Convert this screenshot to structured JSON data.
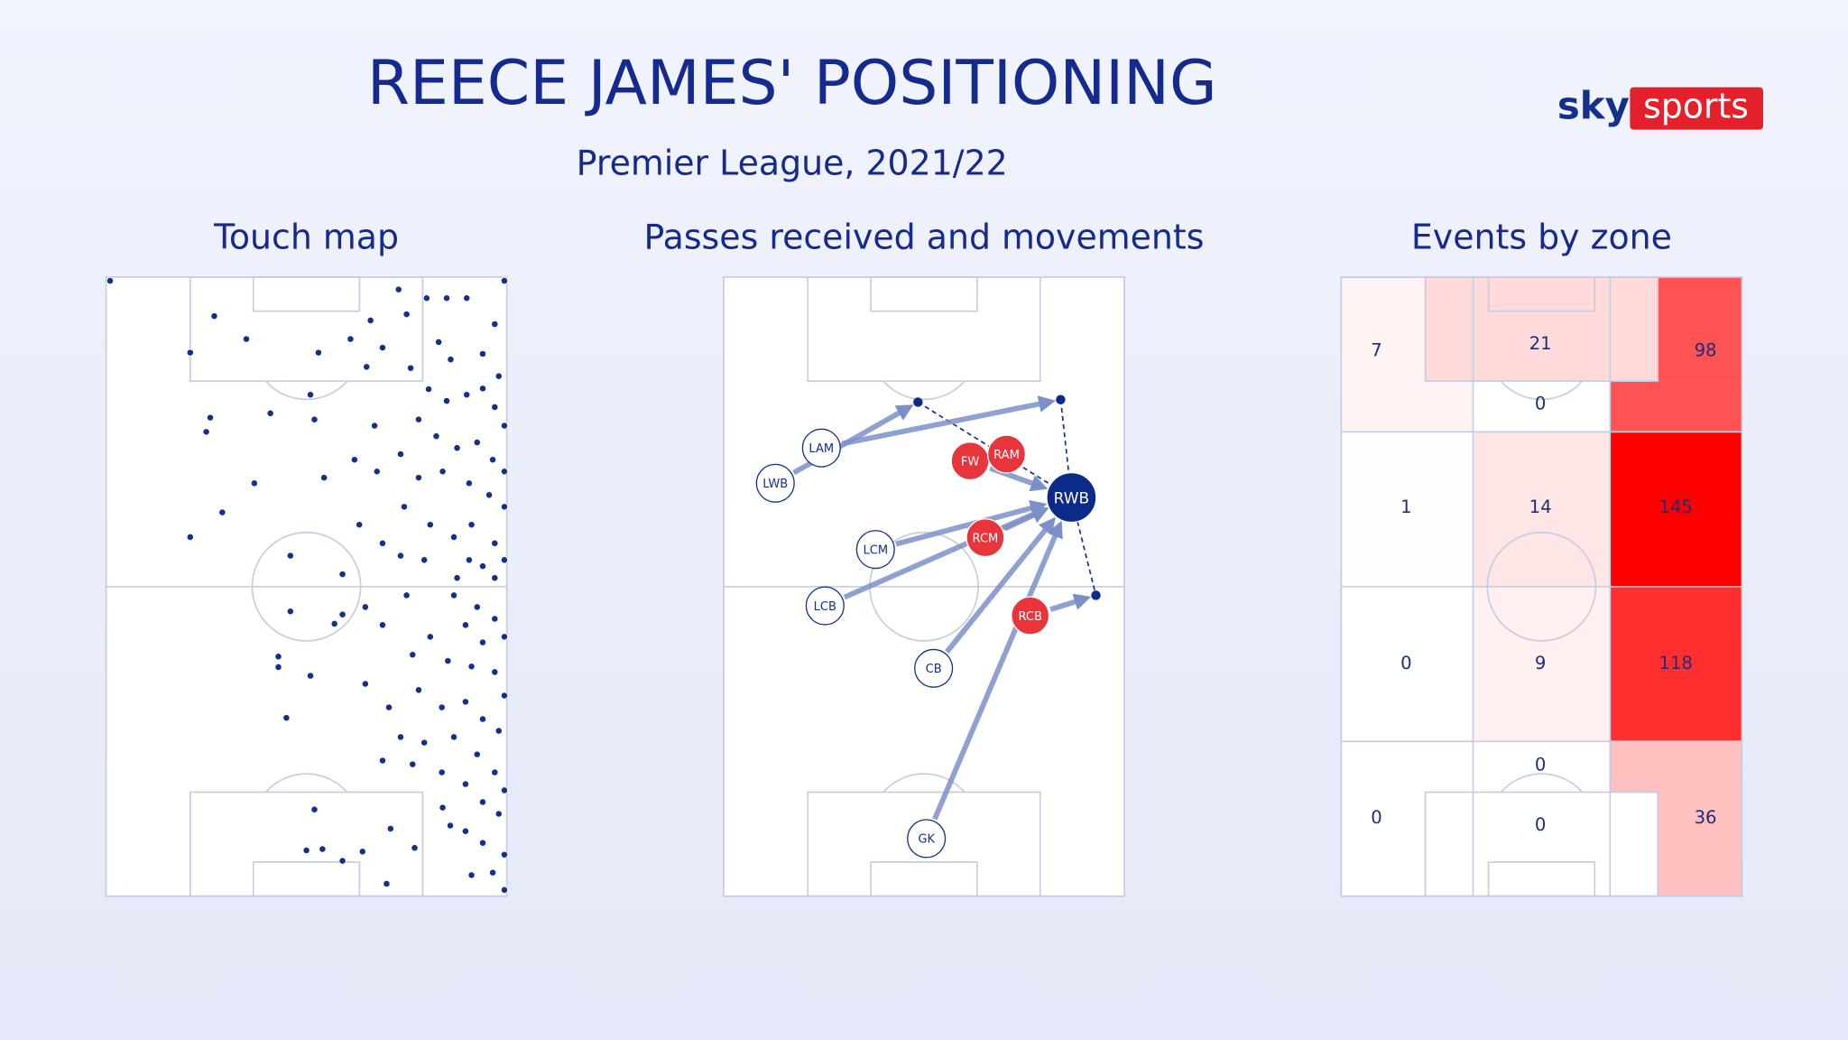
{
  "header": {
    "title": "REECE JAMES' POSITIONING",
    "subtitle": "Premier League, 2021/22"
  },
  "logo": {
    "sky": "sky",
    "sports": "sports"
  },
  "chart_data": [
    {
      "type": "scatter",
      "title": "Touch map",
      "color": "#13308a",
      "xlim": [
        0,
        100
      ],
      "ylim": [
        0,
        100
      ],
      "x": [
        1,
        27,
        35,
        21,
        53,
        26,
        25,
        41,
        51,
        52,
        37,
        29,
        21,
        46,
        59,
        46,
        59,
        57,
        43,
        43,
        51,
        45,
        52,
        50,
        54,
        59,
        64,
        71,
        70,
        77,
        99.4,
        99.4,
        61,
        65,
        69,
        66,
        73,
        75,
        80,
        85,
        90,
        83,
        86,
        94,
        97,
        98,
        76,
        80.5,
        85,
        90,
        94,
        97,
        99.4,
        78,
        82.4,
        87.6,
        92.6,
        96.5,
        99.4,
        73.5,
        67,
        62,
        54.4,
        67.6,
        78,
        84,
        90.6,
        95.6,
        99.4,
        74.4,
        80.9,
        86.8,
        91.2,
        97,
        99.4,
        63.2,
        69,
        73.5,
        79.4,
        90.6,
        94,
        87.6,
        97,
        64.7,
        69,
        75,
        86.8,
        92.6,
        97,
        99.4,
        89.7,
        94,
        80.9,
        76.5,
        85.3,
        91.2,
        97,
        99.4,
        64.7,
        70.6,
        78,
        83.8,
        89.7,
        94,
        98,
        73.5,
        79.4,
        86.8,
        92.6,
        97,
        99.4,
        69,
        76.5,
        83.8,
        89.7,
        94,
        98,
        84,
        89.7,
        94,
        91.2,
        85.9,
        96.5,
        99.4
      ],
      "y": [
        99.4,
        93.7,
        90,
        87.8,
        87.8,
        77.3,
        75,
        78,
        81,
        77,
        66.7,
        62,
        58,
        55,
        52,
        46,
        45.5,
        44,
        38.7,
        37,
        35.6,
        28.8,
        14,
        7.4,
        7.6,
        5.7,
        7.2,
        10.9,
        2,
        7.8,
        99.4,
        1,
        90,
        85.5,
        88.6,
        93,
        98,
        94,
        96.6,
        96.6,
        96.6,
        89.5,
        86.7,
        87.6,
        92.4,
        84,
        85.3,
        81.9,
        80,
        81,
        82,
        79,
        76,
        77,
        74.3,
        72.4,
        73.3,
        70.5,
        68.6,
        71.4,
        76,
        70.5,
        67.6,
        68.6,
        67.6,
        68.6,
        66.7,
        64.8,
        62.9,
        62.9,
        60,
        58,
        60,
        57,
        54.3,
        60,
        57,
        55,
        54.3,
        54.3,
        53.3,
        51.4,
        51.4,
        46.7,
        43.8,
        48.6,
        48.6,
        46.7,
        44.8,
        41.9,
        43.8,
        41,
        41.9,
        39,
        38,
        37.1,
        36.2,
        32.4,
        34.3,
        30.5,
        33.3,
        30.5,
        31.4,
        28.6,
        26.7,
        25.7,
        24.8,
        25.7,
        22.9,
        20,
        17.1,
        21.9,
        21.3,
        20,
        18.1,
        15.2,
        13.3,
        14.3,
        10.5,
        8.6,
        3.4,
        11.4,
        3.8,
        6.7
      ]
    },
    {
      "type": "network",
      "title": "Passes received and movements",
      "xlim": [
        0,
        100
      ],
      "ylim": [
        0,
        100
      ],
      "pass_color": "#7b90c9",
      "movement_color": "#13308a",
      "nodes": [
        {
          "label": "LWB",
          "x": 12.9,
          "y": 66.7,
          "color": "#ffffff"
        },
        {
          "label": "LAM",
          "x": 24.4,
          "y": 72.4,
          "color": "#ffffff"
        },
        {
          "label": "FW",
          "x": 61.5,
          "y": 70.3,
          "color": "#e8353b"
        },
        {
          "label": "RAM",
          "x": 70.6,
          "y": 71.4,
          "color": "#e8353b"
        },
        {
          "label": "RWB",
          "x": 86.8,
          "y": 64.4,
          "color": "#0c2a8a"
        },
        {
          "label": "LCM",
          "x": 37.9,
          "y": 56,
          "color": "#ffffff"
        },
        {
          "label": "RCM",
          "x": 65.3,
          "y": 57.9,
          "color": "#e8353b"
        },
        {
          "label": "LCB",
          "x": 25.3,
          "y": 46.9,
          "color": "#ffffff"
        },
        {
          "label": "RCB",
          "x": 76.5,
          "y": 45.3,
          "color": "#e8353b"
        },
        {
          "label": "CB",
          "x": 52.4,
          "y": 36.8,
          "color": "#ffffff"
        },
        {
          "label": "GK",
          "x": 50.6,
          "y": 9.3,
          "color": "#ffffff"
        },
        {
          "label": null,
          "x": 48.5,
          "y": 79.8,
          "color": "#0c2a8a"
        },
        {
          "label": null,
          "x": 84.1,
          "y": 80.2,
          "color": "#0c2a8a"
        },
        {
          "label": null,
          "x": 92.9,
          "y": 48.6,
          "color": "#0c2a8a"
        }
      ],
      "passes": [
        [
          0,
          11
        ],
        [
          1,
          12
        ],
        [
          2,
          4
        ],
        [
          5,
          4
        ],
        [
          6,
          4
        ],
        [
          7,
          4
        ],
        [
          9,
          4
        ],
        [
          10,
          4
        ],
        [
          8,
          13
        ]
      ],
      "movements": [
        [
          11,
          4
        ],
        [
          12,
          4
        ],
        [
          4,
          13
        ]
      ]
    },
    {
      "type": "heatmap",
      "title": "Events by zone",
      "color": "#ff0000",
      "values": [
        7,
        21,
        0,
        98,
        1,
        14,
        145,
        0,
        9,
        118,
        0,
        0,
        0,
        36
      ]
    }
  ]
}
